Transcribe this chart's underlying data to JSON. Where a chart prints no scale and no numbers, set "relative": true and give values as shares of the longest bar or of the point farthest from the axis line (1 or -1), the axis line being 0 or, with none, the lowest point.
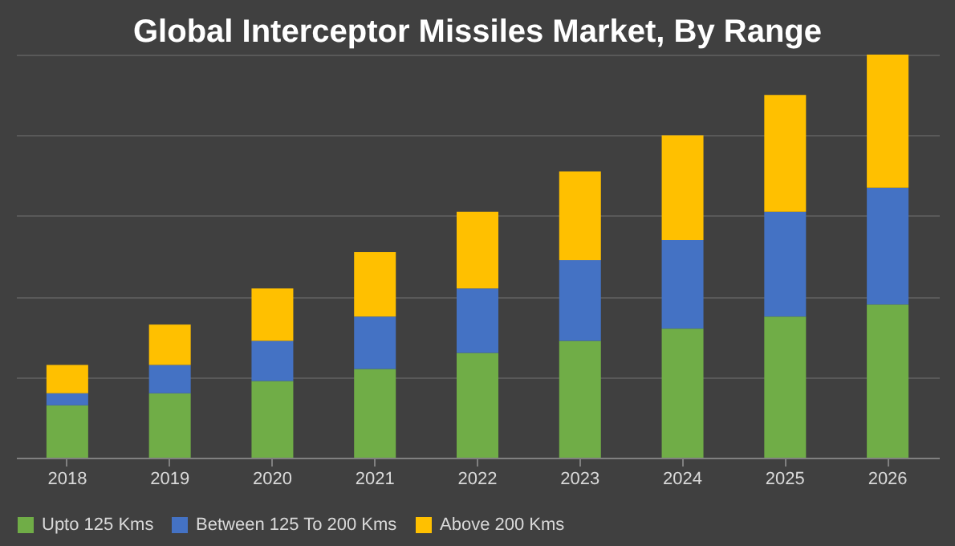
{
  "chart_data": {
    "type": "bar",
    "title": "Global Interceptor Missiles Market, By Range",
    "stacked": true,
    "relative": true,
    "categories": [
      "2018",
      "2019",
      "2020",
      "2021",
      "2022",
      "2023",
      "2024",
      "2025",
      "2026"
    ],
    "series": [
      {
        "name": "Upto 125 Kms",
        "color": "#70ad47",
        "values": [
          0.13,
          0.16,
          0.19,
          0.22,
          0.26,
          0.29,
          0.32,
          0.35,
          0.38
        ]
      },
      {
        "name": "Between 125 To 200 Kms",
        "color": "#4472c4",
        "values": [
          0.03,
          0.07,
          0.1,
          0.13,
          0.16,
          0.2,
          0.22,
          0.26,
          0.29
        ]
      },
      {
        "name": "Above 200 Kms",
        "color": "#ffc000",
        "values": [
          0.07,
          0.1,
          0.13,
          0.16,
          0.19,
          0.22,
          0.26,
          0.29,
          0.33
        ]
      }
    ],
    "grid": "y",
    "legend": "bottom"
  }
}
